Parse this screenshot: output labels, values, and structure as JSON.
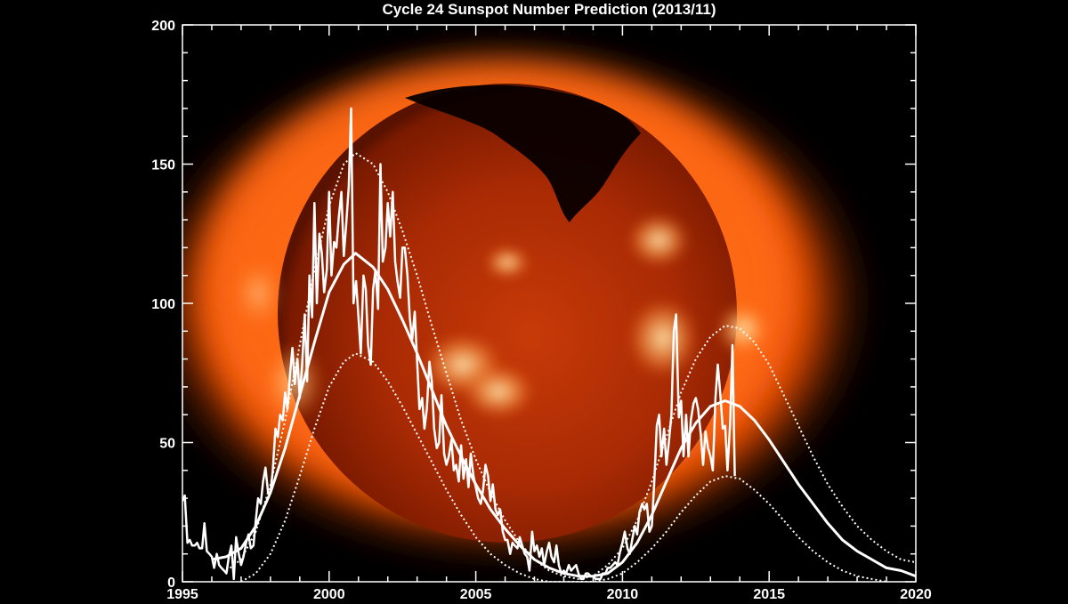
{
  "chart_data": {
    "type": "line",
    "title": "Cycle 24 Sunspot Number Prediction (2013/11)",
    "xlabel": "",
    "ylabel": "",
    "xlim": [
      1995,
      2020
    ],
    "ylim": [
      0,
      200
    ],
    "x_ticks": [
      "1995",
      "2000",
      "2005",
      "2010",
      "2015",
      "2020"
    ],
    "y_ticks": [
      "0",
      "50",
      "100",
      "150",
      "200"
    ],
    "background_image": "sun-xray-image",
    "colors": {
      "lines": "#ffffff",
      "background": "#000000"
    },
    "grid": false,
    "series": [
      {
        "style": "solid-jagged",
        "x": [
          1995.0,
          1995.08,
          1995.17,
          1995.25,
          1995.33,
          1995.42,
          1995.5,
          1995.58,
          1995.67,
          1995.75,
          1995.83,
          1995.92,
          1996.0,
          1996.08,
          1996.17,
          1996.25,
          1996.33,
          1996.42,
          1996.5,
          1996.58,
          1996.67,
          1996.75,
          1996.83,
          1996.92,
          1997.0,
          1997.08,
          1997.17,
          1997.25,
          1997.33,
          1997.42,
          1997.5,
          1997.58,
          1997.67,
          1997.75,
          1997.83,
          1997.92,
          1998.0,
          1998.08,
          1998.17,
          1998.25,
          1998.33,
          1998.42,
          1998.5,
          1998.58,
          1998.67,
          1998.75,
          1998.83,
          1998.92,
          1999.0,
          1999.08,
          1999.17,
          1999.25,
          1999.33,
          1999.42,
          1999.5,
          1999.58,
          1999.67,
          1999.75,
          1999.83,
          1999.92,
          2000.0,
          2000.08,
          2000.17,
          2000.25,
          2000.33,
          2000.42,
          2000.5,
          2000.58,
          2000.67,
          2000.75,
          2000.83,
          2000.92,
          2001.0,
          2001.08,
          2001.17,
          2001.25,
          2001.33,
          2001.42,
          2001.5,
          2001.58,
          2001.67,
          2001.75,
          2001.83,
          2001.92,
          2002.0,
          2002.08,
          2002.17,
          2002.25,
          2002.33,
          2002.42,
          2002.5,
          2002.58,
          2002.67,
          2002.75,
          2002.83,
          2002.92,
          2003.0,
          2003.08,
          2003.17,
          2003.25,
          2003.33,
          2003.42,
          2003.5,
          2003.58,
          2003.67,
          2003.75,
          2003.83,
          2003.92,
          2004.0,
          2004.08,
          2004.17,
          2004.25,
          2004.33,
          2004.42,
          2004.5,
          2004.58,
          2004.67,
          2004.75,
          2004.83,
          2004.92,
          2005.0,
          2005.08,
          2005.17,
          2005.25,
          2005.33,
          2005.42,
          2005.5,
          2005.58,
          2005.67,
          2005.75,
          2005.83,
          2005.92,
          2006.0,
          2006.08,
          2006.17,
          2006.25,
          2006.33,
          2006.42,
          2006.5,
          2006.58,
          2006.67,
          2006.75,
          2006.83,
          2006.92,
          2007.0,
          2007.08,
          2007.17,
          2007.25,
          2007.33,
          2007.42,
          2007.5,
          2007.58,
          2007.67,
          2007.75,
          2007.83,
          2007.92,
          2008.0,
          2008.08,
          2008.17,
          2008.25,
          2008.33,
          2008.42,
          2008.5,
          2008.58,
          2008.67,
          2008.75,
          2008.83,
          2008.92,
          2009.0,
          2009.08,
          2009.17,
          2009.25,
          2009.33,
          2009.42,
          2009.5,
          2009.58,
          2009.67,
          2009.75,
          2009.83,
          2009.92,
          2010.0,
          2010.08,
          2010.17,
          2010.25,
          2010.33,
          2010.42,
          2010.5,
          2010.58,
          2010.67,
          2010.75,
          2010.83,
          2010.92,
          2011.0,
          2011.08,
          2011.17,
          2011.25,
          2011.33,
          2011.42,
          2011.5,
          2011.58,
          2011.67,
          2011.75,
          2011.83,
          2011.92,
          2012.0,
          2012.08,
          2012.17,
          2012.25,
          2012.33,
          2012.42,
          2012.5,
          2012.58,
          2012.67,
          2012.75,
          2012.83,
          2012.92,
          2013.0,
          2013.08,
          2013.17,
          2013.25,
          2013.33,
          2013.42,
          2013.5,
          2013.58,
          2013.67,
          2013.75,
          2013.83
        ],
        "y": [
          29,
          31,
          14,
          15,
          13,
          13,
          14,
          12,
          12,
          21,
          11,
          10,
          9,
          5,
          10,
          6,
          5,
          4,
          3,
          9,
          13,
          1,
          16,
          10,
          6,
          9,
          14,
          17,
          12,
          13,
          22,
          30,
          28,
          36,
          41,
          32,
          32,
          40,
          55,
          52,
          60,
          58,
          68,
          62,
          75,
          84,
          71,
          80,
          66,
          78,
          96,
          72,
          110,
          95,
          136,
          100,
          125,
          118,
          104,
          112,
          140,
          110,
          122,
          120,
          131,
          140,
          117,
          128,
          142,
          170,
          100,
          108,
          95,
          82,
          110,
          105,
          85,
          78,
          105,
          112,
          98,
          150,
          115,
          120,
          136,
          124,
          140,
          115,
          108,
          102,
          120,
          120,
          110,
          95,
          87,
          97,
          79,
          62,
          66,
          55,
          62,
          79,
          72,
          55,
          48,
          50,
          67,
          46,
          42,
          45,
          51,
          40,
          42,
          36,
          49,
          37,
          44,
          34,
          46,
          38,
          34,
          30,
          28,
          33,
          42,
          38,
          29,
          35,
          26,
          24,
          26,
          18,
          15,
          15,
          10,
          14,
          13,
          12,
          16,
          13,
          10,
          9,
          4,
          18,
          11,
          13,
          9,
          12,
          6,
          11,
          14,
          9,
          7,
          13,
          6,
          3,
          4,
          3,
          6,
          4,
          5,
          6,
          3,
          1,
          1,
          3,
          3,
          2,
          2,
          1,
          1,
          1,
          3,
          3,
          5,
          5,
          6,
          7,
          6,
          11,
          14,
          18,
          12,
          10,
          15,
          20,
          17,
          25,
          28,
          26,
          28,
          18,
          20,
          35,
          56,
          60,
          45,
          55,
          42,
          50,
          60,
          90,
          96,
          59,
          65,
          45,
          60,
          45,
          58,
          64,
          66,
          62,
          53,
          42,
          54,
          48,
          45,
          40,
          66,
          78,
          68,
          55,
          56,
          40,
          57,
          85,
          38
        ]
      },
      {
        "style": "solid-smooth",
        "x": [
          1996.0,
          1996.5,
          1997.0,
          1997.5,
          1998.0,
          1998.5,
          1999.0,
          1999.5,
          2000.0,
          2000.5,
          2000.9,
          2001.5,
          2002.0,
          2002.5,
          2003.0,
          2003.5,
          2004.0,
          2004.5,
          2005.0,
          2005.5,
          2006.0,
          2006.5,
          2007.0,
          2007.5,
          2008.0,
          2008.5,
          2009.0,
          2009.5,
          2010.0,
          2010.5,
          2011.0,
          2011.5,
          2012.0,
          2012.5,
          2013.0,
          2013.5,
          2014.0,
          2014.5,
          2015.0,
          2015.5,
          2016.0,
          2016.5,
          2017.0,
          2017.5,
          2018.0,
          2018.5,
          2019.0,
          2019.5,
          2020.0
        ],
        "y": [
          8,
          9,
          12,
          20,
          32,
          48,
          67,
          86,
          104,
          114,
          118,
          113,
          105,
          94,
          82,
          69,
          56,
          45,
          35,
          26,
          19,
          13,
          8,
          5,
          3,
          2,
          2,
          3,
          7,
          14,
          24,
          36,
          48,
          57,
          63,
          65,
          63,
          58,
          51,
          43,
          35,
          28,
          21,
          15,
          11,
          8,
          5,
          4,
          2
        ]
      },
      {
        "style": "dotted",
        "x": [
          1996.5,
          1997.0,
          1997.5,
          1998.0,
          1998.5,
          1999.0,
          1999.5,
          2000.0,
          2000.5,
          2000.9,
          2001.5,
          2002.0,
          2002.5,
          2003.0,
          2003.5,
          2004.0,
          2004.5,
          2005.0,
          2005.5,
          2006.0,
          2006.5,
          2007.0,
          2007.5,
          2008.0,
          2008.5,
          2009.0,
          2009.5,
          2010.0,
          2010.5,
          2011.0,
          2011.5,
          2012.0,
          2012.5,
          2013.0,
          2013.5,
          2014.0,
          2014.5,
          2015.0,
          2015.5,
          2016.0,
          2016.5,
          2017.0,
          2017.5,
          2018.0,
          2018.5,
          2019.0,
          2019.5,
          2020.0
        ],
        "y": [
          4,
          8,
          18,
          35,
          58,
          85,
          112,
          135,
          150,
          154,
          150,
          140,
          126,
          110,
          92,
          75,
          58,
          44,
          32,
          22,
          14,
          8,
          4,
          2,
          1,
          2,
          6,
          12,
          22,
          36,
          52,
          68,
          80,
          88,
          92,
          91,
          86,
          78,
          67,
          56,
          45,
          35,
          27,
          20,
          15,
          11,
          8,
          7
        ]
      },
      {
        "style": "dotted",
        "x": [
          1997.0,
          1997.5,
          1998.0,
          1998.5,
          1999.0,
          1999.5,
          2000.0,
          2000.5,
          2000.9,
          2001.5,
          2002.0,
          2002.5,
          2003.0,
          2003.5,
          2004.0,
          2004.5,
          2005.0,
          2005.5,
          2006.0,
          2006.5,
          2007.0,
          2007.5,
          2008.0,
          2008.5,
          2009.0,
          2009.5,
          2010.0,
          2010.5,
          2011.0,
          2011.5,
          2012.0,
          2012.5,
          2013.0,
          2013.5,
          2014.0,
          2014.5,
          2015.0,
          2015.5,
          2016.0,
          2016.5,
          2017.0,
          2017.5,
          2018.0,
          2018.5,
          2019.0
        ],
        "y": [
          0,
          3,
          10,
          22,
          38,
          55,
          70,
          79,
          82,
          79,
          72,
          63,
          53,
          43,
          33,
          24,
          16,
          10,
          6,
          3,
          1,
          0,
          0,
          0,
          0,
          1,
          3,
          7,
          12,
          18,
          25,
          31,
          36,
          38,
          37,
          33,
          28,
          22,
          16,
          11,
          7,
          4,
          2,
          1,
          0
        ]
      }
    ]
  }
}
